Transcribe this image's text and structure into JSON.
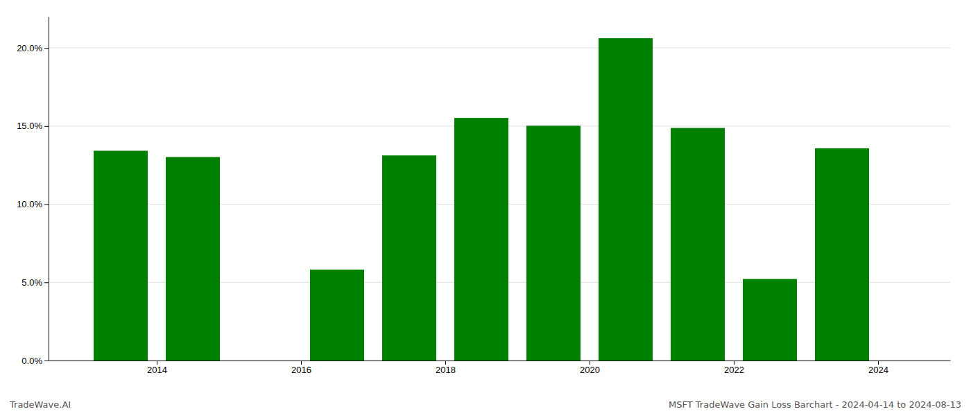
{
  "chart_data": {
    "type": "bar",
    "title": "MSFT TradeWave Gain Loss Barchart - 2024-04-14 to 2024-08-13",
    "annotations": [
      "TradeWave.AI"
    ],
    "x": [
      2013.5,
      2014.5,
      2016.5,
      2017.5,
      2018.5,
      2019.5,
      2020.5,
      2021.5,
      2022.5,
      2023.5
    ],
    "values": [
      13.42,
      13.02,
      5.82,
      13.12,
      15.52,
      15.02,
      20.62,
      14.88,
      5.22,
      13.58
    ],
    "color": "#008000",
    "xlim": [
      2012.5,
      2025.0
    ],
    "xticks": [
      2014,
      2016,
      2018,
      2020,
      2022,
      2024
    ],
    "ylim": [
      0,
      22
    ],
    "yticks": [
      {
        "value": 0.0,
        "label": "0.0%"
      },
      {
        "value": 5.0,
        "label": "5.0%"
      },
      {
        "value": 10.0,
        "label": "10.0%"
      },
      {
        "value": 15.0,
        "label": "15.0%"
      },
      {
        "value": 20.0,
        "label": "20.0%"
      }
    ],
    "grid": true
  }
}
